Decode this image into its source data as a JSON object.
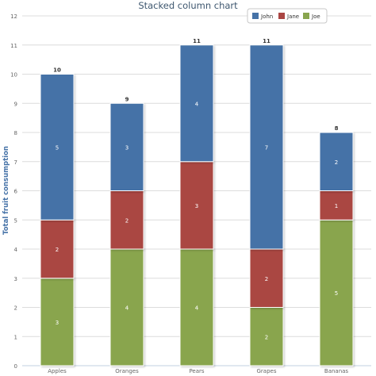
{
  "chart_data": {
    "type": "bar",
    "stacked": true,
    "title": "Stacked column chart",
    "xlabel": "",
    "ylabel": "Total fruit consumption",
    "ylim": [
      0,
      12
    ],
    "yticks": [
      0,
      1,
      2,
      3,
      4,
      5,
      6,
      7,
      8,
      9,
      10,
      11,
      12
    ],
    "grid": true,
    "legend_position": "top-right",
    "categories": [
      "Apples",
      "Oranges",
      "Pears",
      "Grapes",
      "Bananas"
    ],
    "series": [
      {
        "name": "John",
        "color": "#4572a7",
        "values": [
          5,
          3,
          4,
          7,
          2
        ]
      },
      {
        "name": "Jane",
        "color": "#aa4643",
        "values": [
          2,
          2,
          3,
          2,
          1
        ]
      },
      {
        "name": "Joe",
        "color": "#89a54e",
        "values": [
          3,
          4,
          4,
          2,
          5
        ]
      }
    ],
    "totals": [
      10,
      9,
      11,
      11,
      8
    ],
    "title_color": "#3e576f",
    "axis_label_color": "#4572a7"
  }
}
